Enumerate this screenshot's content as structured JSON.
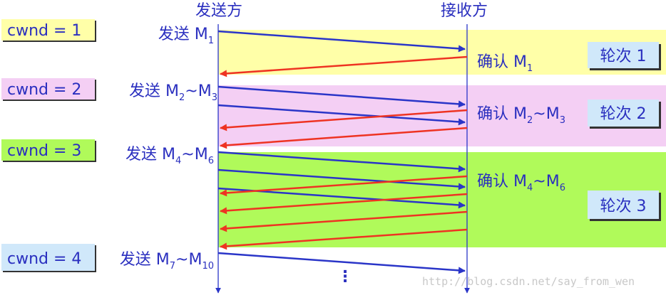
{
  "header": {
    "sender": "发送方",
    "receiver": "接收方"
  },
  "cwnd": [
    "cwnd = 1",
    "cwnd = 2",
    "cwnd = 3",
    "cwnd = 4"
  ],
  "send_labels": [
    {
      "verb": "发送",
      "m": "M",
      "a": "1",
      "tilde": "",
      "m2": "",
      "b": ""
    },
    {
      "verb": "发送",
      "m": "M",
      "a": "2",
      "tilde": "~",
      "m2": "M",
      "b": "3"
    },
    {
      "verb": "发送",
      "m": "M",
      "a": "4",
      "tilde": "~",
      "m2": "M",
      "b": "6"
    },
    {
      "verb": "发送",
      "m": "M",
      "a": "7",
      "tilde": "~",
      "m2": "M",
      "b": "10"
    }
  ],
  "ack_labels": [
    {
      "verb": "确认",
      "m": "M",
      "a": "1",
      "tilde": "",
      "m2": "",
      "b": ""
    },
    {
      "verb": "确认",
      "m": "M",
      "a": "2",
      "tilde": "~",
      "m2": "M",
      "b": "3"
    },
    {
      "verb": "确认",
      "m": "M",
      "a": "4",
      "tilde": "~",
      "m2": "M",
      "b": "6"
    }
  ],
  "rounds": [
    "轮次 1",
    "轮次 2",
    "轮次 3"
  ],
  "ellipsis": "⋮",
  "watermark": "http://blog.csdn.net/say_from_wen",
  "colors": {
    "round1": "#ffffa8",
    "round2": "#f4cff4",
    "round3": "#b0fa5a",
    "send_arrow": "#2a35c8",
    "ack_arrow": "#ee3322",
    "round_box": "#d0e8fa",
    "cwnd4_box": "#d0e8fa"
  }
}
